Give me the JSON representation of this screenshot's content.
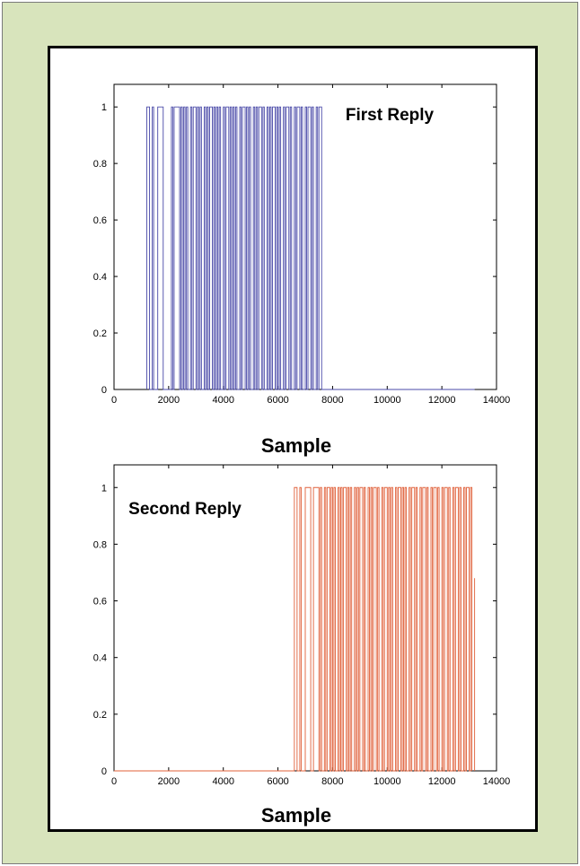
{
  "chart_data": [
    {
      "type": "line",
      "title": "",
      "annotation": "First Reply",
      "xlabel": "Sample",
      "ylabel": "",
      "xlim": [
        0,
        14000
      ],
      "ylim": [
        0,
        1.08
      ],
      "xticks": [
        0,
        2000,
        4000,
        6000,
        8000,
        10000,
        12000,
        14000
      ],
      "yticks": [
        0,
        0.2,
        0.4,
        0.6,
        0.8,
        1
      ],
      "grid": false,
      "series": [
        {
          "color": "#4a4aa8",
          "signal": "binary",
          "active_range": [
            1200,
            7600
          ],
          "pulse_edges": [
            1200,
            1300,
            1400,
            1450,
            1600,
            1800,
            2100,
            2150,
            2200,
            2400,
            2450,
            2500,
            2550,
            2600,
            2650,
            2700,
            2800,
            2850,
            2900,
            3000,
            3050,
            3100,
            3150,
            3200,
            3300,
            3350,
            3400,
            3450,
            3500,
            3600,
            3650,
            3700,
            3750,
            3800,
            3850,
            3900,
            4000,
            4050,
            4100,
            4200,
            4250,
            4300,
            4350,
            4400,
            4450,
            4500,
            4600,
            4650,
            4700,
            4800,
            4850,
            4900,
            4950,
            5000,
            5100,
            5150,
            5200,
            5250,
            5300,
            5400,
            5450,
            5500,
            5600,
            5650,
            5700,
            5750,
            5800,
            5900,
            5950,
            6000,
            6050,
            6100,
            6200,
            6250,
            6300,
            6400,
            6450,
            6500,
            6600,
            6650,
            6700,
            6800,
            6850,
            6900,
            7000,
            7050,
            7100,
            7200,
            7250,
            7300,
            7400,
            7450,
            7500,
            7600
          ],
          "baseline_to": 13200
        }
      ]
    },
    {
      "type": "line",
      "title": "",
      "annotation": "Second Reply",
      "xlabel": "Sample",
      "ylabel": "",
      "xlim": [
        0,
        14000
      ],
      "ylim": [
        0,
        1.08
      ],
      "xticks": [
        0,
        2000,
        4000,
        6000,
        8000,
        10000,
        12000,
        14000
      ],
      "yticks": [
        0,
        0.2,
        0.4,
        0.6,
        0.8,
        1
      ],
      "grid": false,
      "series": [
        {
          "color": "#e0603a",
          "signal": "binary",
          "active_range": [
            6600,
            13100
          ],
          "pulse_edges": [
            6600,
            6700,
            6800,
            6850,
            7000,
            7200,
            7300,
            7500,
            7550,
            7600,
            7700,
            7750,
            7800,
            7900,
            7950,
            8000,
            8050,
            8100,
            8200,
            8250,
            8300,
            8350,
            8400,
            8500,
            8550,
            8600,
            8650,
            8700,
            8800,
            8850,
            8900,
            8950,
            9000,
            9100,
            9150,
            9200,
            9300,
            9350,
            9400,
            9450,
            9500,
            9600,
            9650,
            9700,
            9800,
            9850,
            9900,
            10000,
            10050,
            10100,
            10150,
            10200,
            10300,
            10350,
            10400,
            10500,
            10550,
            10600,
            10650,
            10700,
            10800,
            10850,
            10900,
            11000,
            11050,
            11100,
            11200,
            11250,
            11300,
            11400,
            11450,
            11500,
            11600,
            11650,
            11700,
            11800,
            11850,
            11900,
            12000,
            12050,
            12100,
            12200,
            12250,
            12300,
            12400,
            12450,
            12500,
            12600,
            12650,
            12700,
            12800,
            12850,
            12900,
            13000,
            13050,
            13100
          ],
          "tail_value": 0.68,
          "baseline_from": 0
        }
      ]
    }
  ]
}
